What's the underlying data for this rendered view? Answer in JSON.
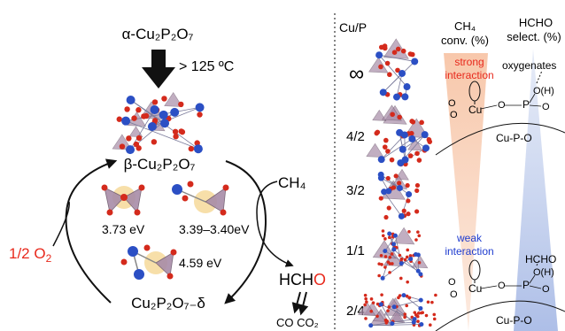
{
  "left": {
    "alpha_phase": "α-Cu₂P₂O₇",
    "temperature": "> 125 ºC",
    "beta_phase": "β-Cu₂P₂O₇",
    "energy_a": "3.73 eV",
    "energy_b": "3.39–3.40eV",
    "energy_c": "4.59 eV",
    "reduced_phase": "Cu₂P₂O₇₋δ",
    "oxygen_prefix": "1/2 O",
    "oxygen_sub": "2",
    "methane": "CH₄",
    "product_prefix": "HCH",
    "product_o": "O",
    "byproducts": "CO CO₂"
  },
  "right": {
    "cu_p_header": "Cu/P",
    "ch4_header_line1": "CH₄",
    "ch4_header_line2": "conv. (%)",
    "hcho_header_line1": "HCHO",
    "hcho_header_line2": "select. (%)",
    "ratios": [
      "∞",
      "4/2",
      "3/2",
      "1/1",
      "2/4"
    ],
    "strong_line1": "strong",
    "strong_line2": "interaction",
    "oxygenates": "oxygenates",
    "oh_top": "O(H)",
    "site_top": "Cu-P-O",
    "weak_line1": "weak",
    "weak_line2": "interaction",
    "hcho_label": "HCHO",
    "oh_bottom": "O(H)",
    "site_bottom": "Cu-P-O",
    "atom_cu": "Cu",
    "atom_p": "P",
    "atom_o": "O"
  },
  "colors": {
    "cu_atom": "#2b4fc4",
    "o_atom": "#d42a1c",
    "polyhedron": "#a88ca8",
    "highlight": "#f6d99a",
    "oxygen_label": "#e8291c",
    "strong_text": "#e8291c",
    "weak_text": "#1f3ccf",
    "conv_wedge": "#f6c9ad",
    "select_wedge": "#b9c8ea"
  }
}
